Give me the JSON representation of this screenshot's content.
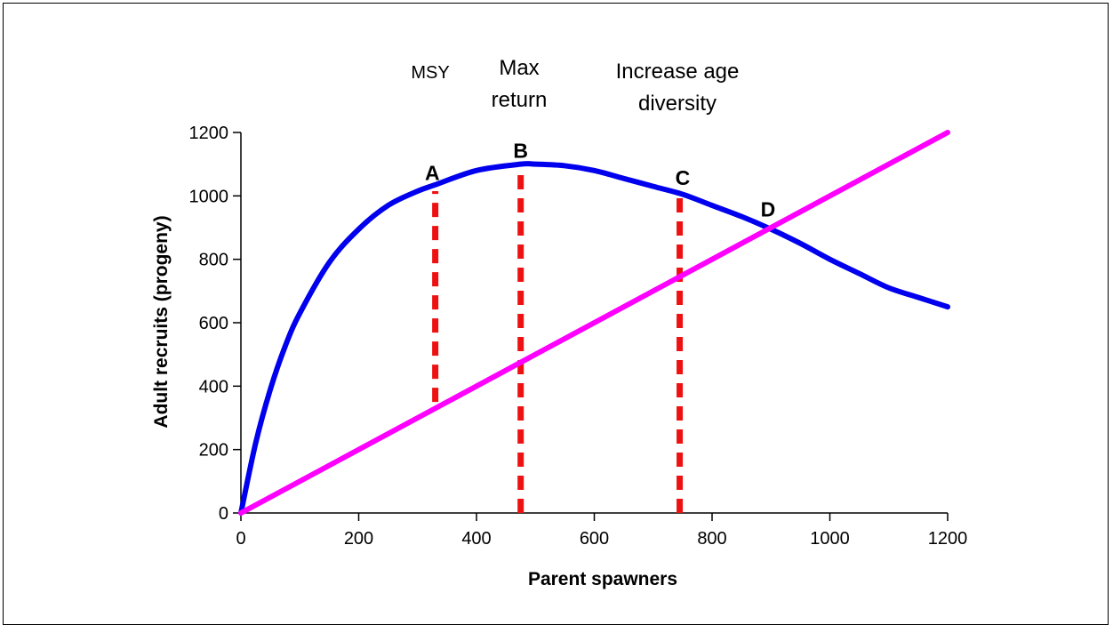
{
  "chart_data": {
    "type": "line",
    "xlabel": "Parent spawners",
    "ylabel": "Adult recruits (progeny)",
    "xlim": [
      0,
      1200
    ],
    "ylim": [
      0,
      1200
    ],
    "x_ticks": [
      "0",
      "200",
      "400",
      "600",
      "800",
      "1000",
      "1200"
    ],
    "y_ticks": [
      "0",
      "200",
      "400",
      "600",
      "800",
      "1000",
      "1200"
    ],
    "grid": false,
    "series": [
      {
        "color": "#0000ee",
        "x": [
          0,
          25,
          50,
          75,
          100,
          150,
          200,
          250,
          300,
          330,
          400,
          475,
          500,
          550,
          600,
          650,
          700,
          750,
          800,
          850,
          900,
          950,
          1000,
          1050,
          1100,
          1150,
          1200
        ],
        "y": [
          0,
          220,
          390,
          525,
          630,
          790,
          895,
          970,
          1015,
          1035,
          1080,
          1100,
          1100,
          1095,
          1080,
          1055,
          1030,
          1005,
          970,
          935,
          895,
          850,
          800,
          755,
          710,
          680,
          650
        ]
      },
      {
        "color": "#ff00ff",
        "x": [
          0,
          1200
        ],
        "y": [
          0,
          1200
        ]
      }
    ],
    "reference_lines": [
      {
        "x": 330,
        "y_from": 350,
        "y_to": 1015,
        "color": "#ee1111"
      },
      {
        "x": 475,
        "y_from": 0,
        "y_to": 1100,
        "color": "#ee1111"
      },
      {
        "x": 745,
        "y_from": 0,
        "y_to": 1010,
        "color": "#ee1111"
      }
    ],
    "point_labels": [
      {
        "text": "A",
        "x": 325,
        "y": 1050
      },
      {
        "text": "B",
        "x": 475,
        "y": 1120
      },
      {
        "text": "C",
        "x": 750,
        "y": 1035
      },
      {
        "text": "D",
        "x": 895,
        "y": 935
      }
    ],
    "annotations": {
      "msy": "MSY",
      "max_return_line1": "Max",
      "max_return_line2": "return",
      "age_line1": "Increase age",
      "age_line2": "diversity"
    }
  }
}
